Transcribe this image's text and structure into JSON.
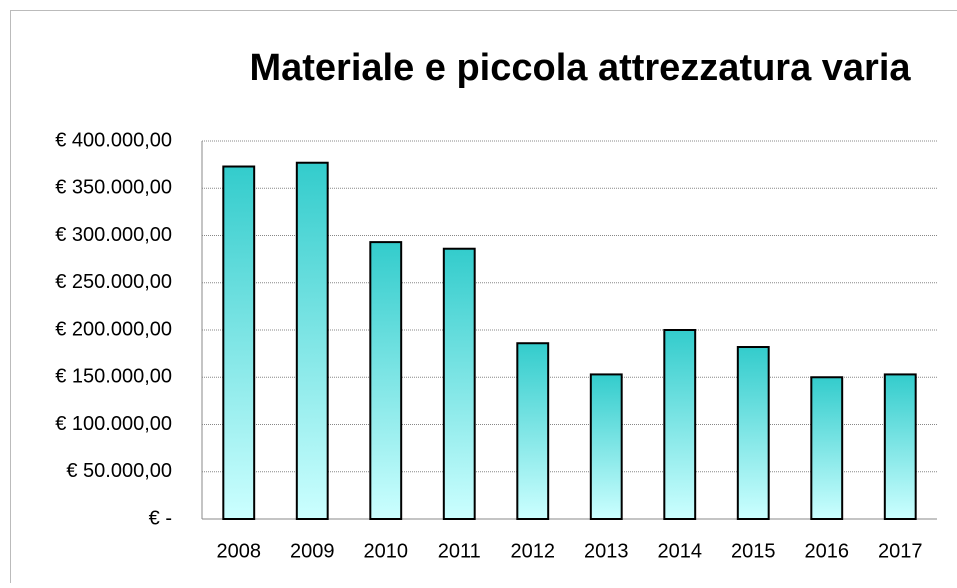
{
  "chart_data": {
    "type": "bar",
    "title": "Materiale e piccola attrezzatura varia",
    "categories": [
      "2008",
      "2009",
      "2010",
      "2011",
      "2012",
      "2013",
      "2014",
      "2015",
      "2016",
      "2017"
    ],
    "values": [
      373000,
      377000,
      293000,
      286000,
      186000,
      153000,
      200000,
      182000,
      150000,
      153000
    ],
    "color": "#33cccc",
    "ylim": [
      0,
      400000
    ],
    "yticks": [
      {
        "value": 0,
        "label": "€ -"
      },
      {
        "value": 50000,
        "label": "€ 50.000,00"
      },
      {
        "value": 100000,
        "label": "€ 100.000,00"
      },
      {
        "value": 150000,
        "label": "€ 150.000,00"
      },
      {
        "value": 200000,
        "label": "€ 200.000,00"
      },
      {
        "value": 250000,
        "label": "€ 250.000,00"
      },
      {
        "value": 300000,
        "label": "€ 300.000,00"
      },
      {
        "value": 350000,
        "label": "€ 350.000,00"
      },
      {
        "value": 400000,
        "label": "€ 400.000,00"
      }
    ],
    "grid": true
  }
}
